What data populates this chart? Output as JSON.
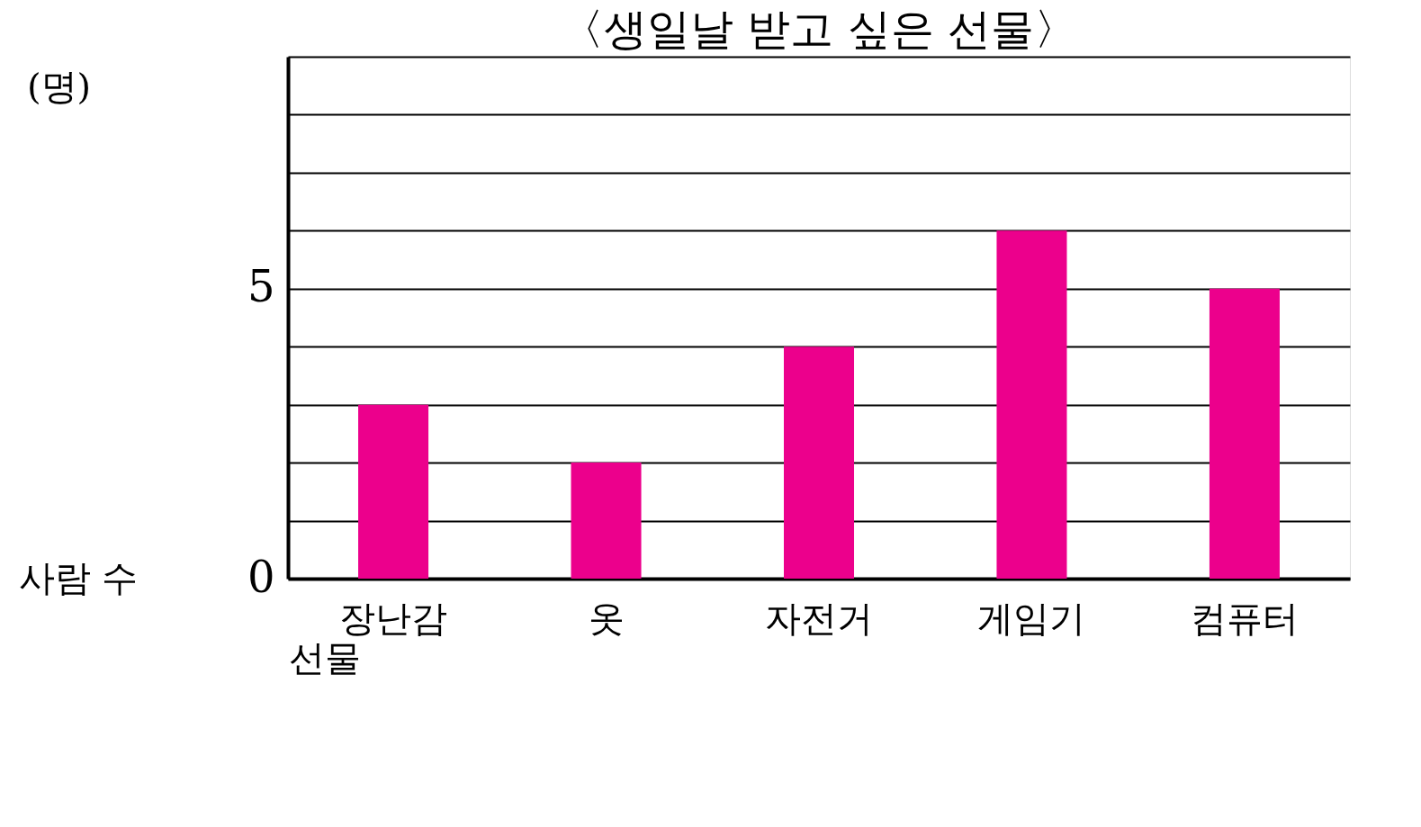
{
  "chart_data": {
    "type": "bar",
    "title": "〈생일날 받고 싶은 선물〉",
    "categories": [
      "장난감",
      "옷",
      "자전거",
      "게임기",
      "컴퓨터"
    ],
    "values": [
      3,
      2,
      4,
      6,
      5
    ],
    "color": "#ec008c",
    "xlabel": "선물",
    "ylabel": "사람 수",
    "annotations": [
      "(명)"
    ],
    "ylim": [
      0,
      9
    ],
    "yticks": [
      0,
      {
        "value": 1,
        "label": null
      },
      {
        "value": 2,
        "label": null
      },
      {
        "value": 3,
        "label": null
      },
      {
        "value": 4,
        "label": null
      },
      5,
      {
        "value": 6,
        "label": null
      },
      {
        "value": 7,
        "label": null
      },
      {
        "value": 8,
        "label": null
      },
      {
        "value": 9,
        "label": null
      }
    ],
    "grid": "y"
  }
}
